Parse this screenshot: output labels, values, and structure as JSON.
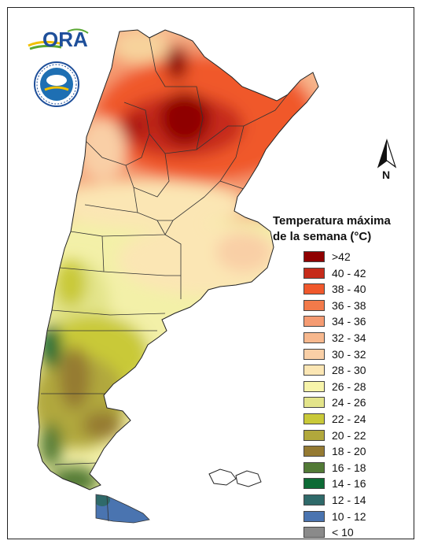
{
  "legend": {
    "title_line1": "Temperatura máxima",
    "title_line2": "de la semana (°C)",
    "items": [
      {
        "label": ">42",
        "color": "#8f0000"
      },
      {
        "label": "40 - 42",
        "color": "#c62b1a"
      },
      {
        "label": "38 - 40",
        "color": "#f0582c"
      },
      {
        "label": "36 - 38",
        "color": "#f27a4a"
      },
      {
        "label": "34 - 36",
        "color": "#f59b72"
      },
      {
        "label": "32 - 34",
        "color": "#f7b88e"
      },
      {
        "label": "30 - 32",
        "color": "#f9cfa6"
      },
      {
        "label": "28 - 30",
        "color": "#fbe6b4"
      },
      {
        "label": "26 - 28",
        "color": "#f7f4aa"
      },
      {
        "label": "24 - 26",
        "color": "#e3e48a"
      },
      {
        "label": "22 - 24",
        "color": "#c9c939"
      },
      {
        "label": "20 - 22",
        "color": "#b1a83c"
      },
      {
        "label": "18 - 20",
        "color": "#957a32"
      },
      {
        "label": "16 - 18",
        "color": "#527a36"
      },
      {
        "label": "14 - 16",
        "color": "#0d6b35"
      },
      {
        "label": "12 - 14",
        "color": "#2f6a6a"
      },
      {
        "label": "10 - 12",
        "color": "#4a74b0"
      },
      {
        "label": "< 10",
        "color": "#8a8a8a"
      }
    ]
  },
  "logo": {
    "name": "ORA"
  },
  "north_arrow": {
    "label": "N"
  }
}
